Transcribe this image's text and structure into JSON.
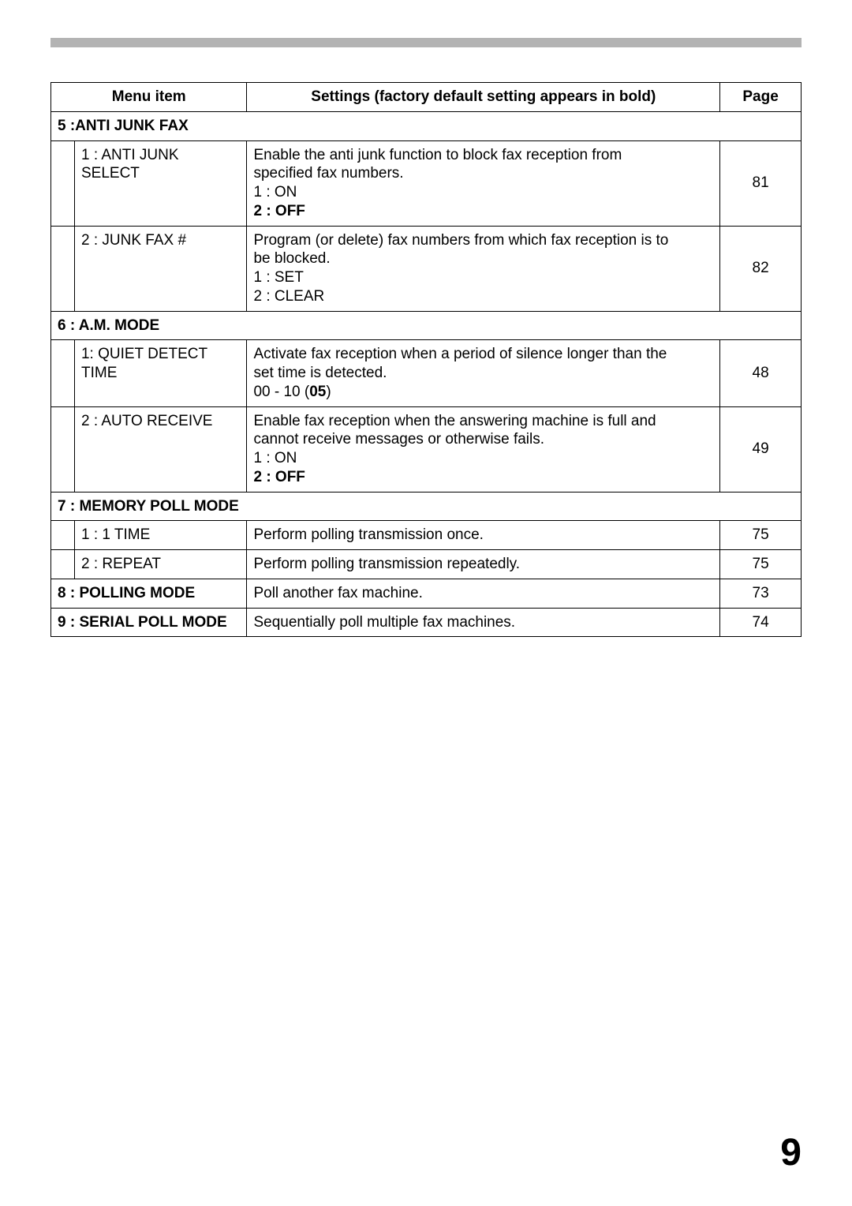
{
  "headers": {
    "menu_item": "Menu item",
    "settings": "Settings (factory default setting appears in bold)",
    "page": "Page"
  },
  "sections": [
    {
      "title": "5 :ANTI JUNK FAX",
      "rows": [
        {
          "item": "1 : ANTI JUNK SELECT",
          "desc_lines": [
            {
              "t": "Enable the anti junk function to block fax reception from",
              "b": false
            },
            {
              "t": "specified fax numbers.",
              "b": false
            },
            {
              "t": "1 : ON",
              "b": false
            },
            {
              "t": "2 : OFF",
              "b": true
            }
          ],
          "page": "81"
        },
        {
          "item": "2 : JUNK FAX #",
          "desc_lines": [
            {
              "t": "Program (or delete) fax numbers from which fax reception is to",
              "b": false
            },
            {
              "t": "be blocked.",
              "b": false
            },
            {
              "t": "1 : SET",
              "b": false
            },
            {
              "t": "2 : CLEAR",
              "b": false
            }
          ],
          "page": "82"
        }
      ]
    },
    {
      "title": "6 : A.M. MODE",
      "rows": [
        {
          "item": "1: QUIET DETECT TIME",
          "desc_lines": [
            {
              "t": "Activate fax reception when a period of silence longer than the",
              "b": false
            },
            {
              "t": "set time is detected.",
              "b": false
            },
            {
              "t_pre": "00 - 10 (",
              "t_bold": "05",
              "t_post": ")"
            }
          ],
          "page": "48"
        },
        {
          "item": "2 : AUTO RECEIVE",
          "desc_lines": [
            {
              "t": "Enable fax reception when the answering machine is full and",
              "b": false
            },
            {
              "t": "cannot receive messages or otherwise fails.",
              "b": false
            },
            {
              "t": "1 : ON",
              "b": false
            },
            {
              "t": "2 : OFF",
              "b": true
            }
          ],
          "page": "49"
        }
      ]
    },
    {
      "title": "7 : MEMORY POLL MODE",
      "rows": [
        {
          "item": "1 : 1 TIME",
          "desc_lines": [
            {
              "t": "Perform polling transmission once.",
              "b": false
            }
          ],
          "page": "75"
        },
        {
          "item": "2 : REPEAT",
          "desc_lines": [
            {
              "t": "Perform polling transmission repeatedly.",
              "b": false
            }
          ],
          "page": "75"
        }
      ]
    }
  ],
  "flat_rows": [
    {
      "title": "8 : POLLING MODE",
      "desc": "Poll another fax machine.",
      "page": "73"
    },
    {
      "title": "9 : SERIAL POLL MODE",
      "desc": "Sequentially poll multiple fax machines.",
      "page": "74"
    }
  ],
  "page_number": "9",
  "colors": {
    "top_bar": "#b3b3b3",
    "border": "#000000",
    "bg": "#ffffff"
  },
  "font_sizes": {
    "cell": 19,
    "page_number": 48
  }
}
